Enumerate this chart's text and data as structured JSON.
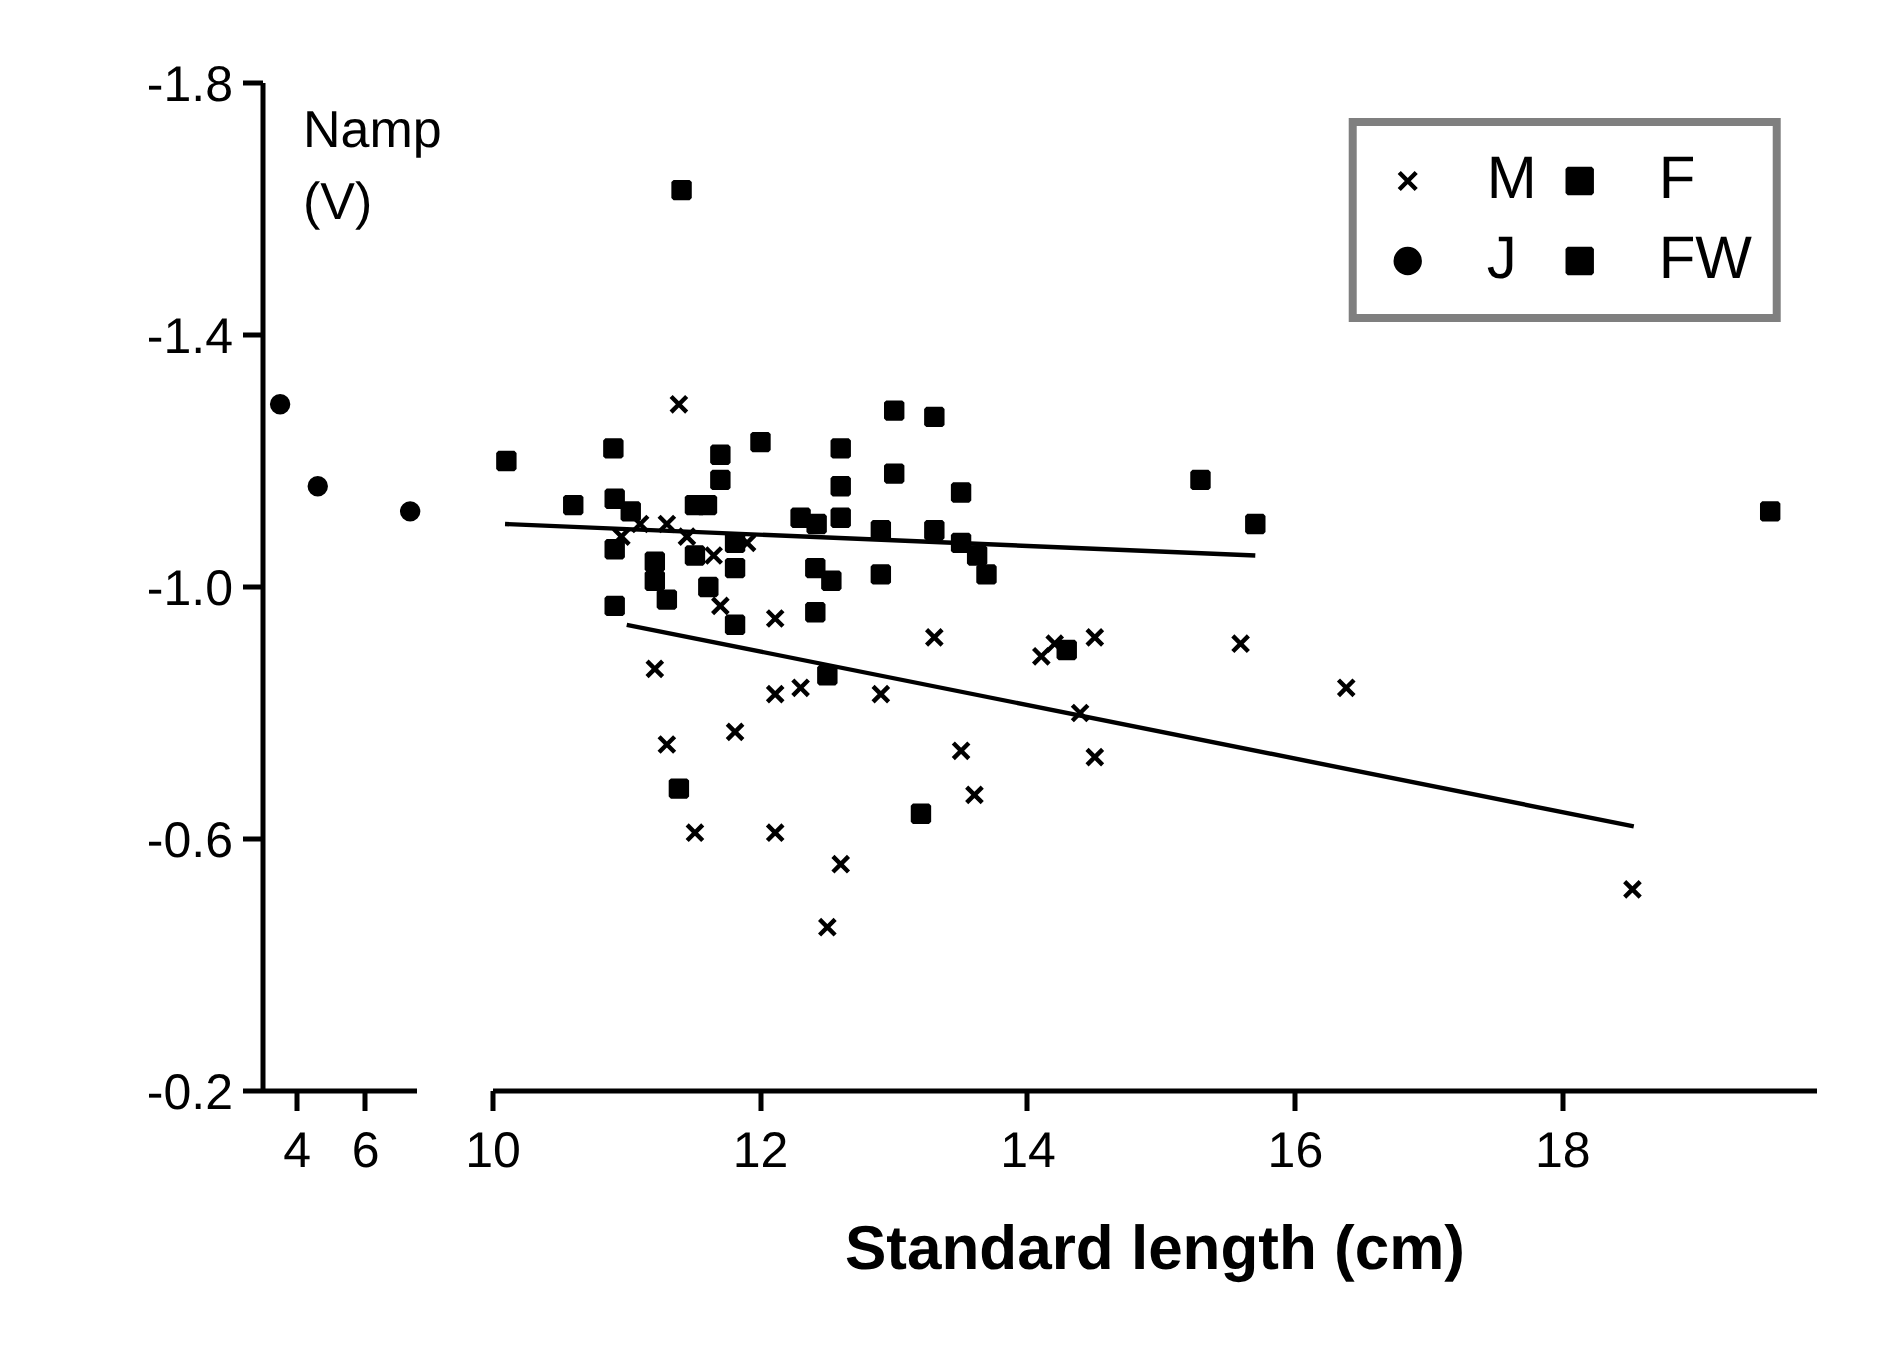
{
  "chart_data": [
    {
      "type": "scatter",
      "ylabel": "Namp\n(V)",
      "xlim": [
        3.0,
        7.5
      ],
      "xticks": [
        4,
        6
      ],
      "ylim": [
        -0.2,
        -1.8
      ],
      "yticks": [
        -1.8,
        -1.4,
        {
          "value": -1.0,
          "label": "-1.0"
        },
        -0.6,
        -0.2
      ],
      "series": [
        {
          "name": "J",
          "color": "#000000",
          "marker": "circle",
          "x": [
            3.5,
            4.6,
            7.3
          ],
          "values": [
            -1.29,
            -1.16,
            -1.12
          ]
        }
      ]
    },
    {
      "type": "scatter",
      "xlabel": "Standard length (cm)",
      "xlim": [
        10,
        19.9
      ],
      "xticks": [
        10,
        12,
        14,
        16,
        18
      ],
      "ylim": [
        -0.2,
        -1.8
      ],
      "tick_labels": "x",
      "legend": "top right",
      "series": [
        {
          "name": "M",
          "color": "#000000",
          "marker": "cross",
          "x": [
            11.39,
            11.21,
            11.3,
            11.51,
            11.3,
            10.96,
            11.45,
            11.65,
            11.1,
            11.9,
            11.7,
            12.11,
            13.3,
            14.1,
            14.2,
            14.5,
            15.59,
            12.11,
            12.3,
            12.9,
            14.39,
            14.5,
            13.5,
            13.6,
            11.81,
            12.11,
            12.6,
            12.5,
            16.38,
            18.52
          ],
          "values": [
            -1.29,
            -0.87,
            -0.75,
            -0.61,
            -1.1,
            -1.08,
            -1.08,
            -1.05,
            -1.1,
            -1.07,
            -0.97,
            -0.95,
            -0.92,
            -0.89,
            -0.91,
            -0.92,
            -0.91,
            -0.83,
            -0.84,
            -0.83,
            -0.8,
            -0.73,
            -0.74,
            -0.67,
            -0.77,
            -0.61,
            -0.56,
            -0.46,
            -0.84,
            -0.52
          ]
        },
        {
          "name": "F",
          "color": "#000000",
          "marker": "square",
          "x": [
            10.1,
            10.6,
            10.9,
            10.91,
            11.03,
            10.91,
            10.91,
            11.21,
            11.21,
            11.3,
            11.51,
            11.51,
            11.61,
            11.39,
            11.41,
            11.7,
            11.7,
            12.0,
            11.6,
            12.6,
            13.0,
            13.3,
            13.0,
            13.5,
            12.6,
            12.6,
            12.3,
            12.42,
            12.9,
            13.3,
            13.5,
            13.62,
            13.69,
            12.9,
            12.41,
            12.53,
            12.41,
            11.81,
            11.81,
            11.81,
            12.5,
            14.29,
            13.2,
            15.29,
            15.7
          ],
          "values": [
            -1.2,
            -1.13,
            -1.22,
            -1.14,
            -1.12,
            -1.06,
            -0.97,
            -1.04,
            -1.01,
            -0.98,
            -1.13,
            -1.05,
            -1.0,
            -0.68,
            -1.63,
            -1.21,
            -1.17,
            -1.23,
            -1.13,
            -1.22,
            -1.28,
            -1.27,
            -1.18,
            -1.15,
            -1.16,
            -1.11,
            -1.11,
            -1.1,
            -1.09,
            -1.09,
            -1.07,
            -1.05,
            -1.02,
            -1.02,
            -1.03,
            -1.01,
            -0.96,
            -1.03,
            -0.94,
            -1.07,
            -0.86,
            -0.9,
            -0.64,
            -1.17,
            -1.1
          ]
        },
        {
          "name": "FW",
          "color": "#000000",
          "marker": "square",
          "x": [
            19.55
          ],
          "values": [
            -1.12
          ]
        },
        {
          "type": "line",
          "color": "#000000",
          "marker": "none",
          "x": [
            10.09,
            15.7
          ],
          "values": [
            -1.1,
            -1.05
          ]
        },
        {
          "type": "line",
          "color": "#000000",
          "marker": "none",
          "x": [
            11.0,
            18.53
          ],
          "values": [
            -0.94,
            -0.62
          ]
        }
      ]
    }
  ]
}
